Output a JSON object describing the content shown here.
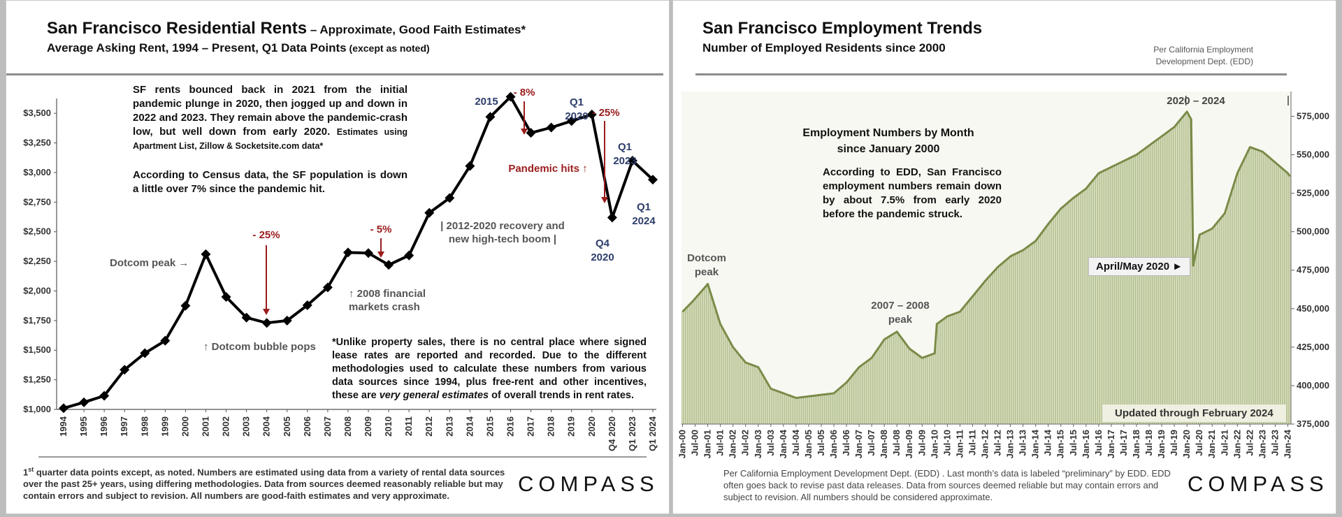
{
  "rent_panel": {
    "title_main": "San Francisco Residential Rents",
    "title_suffix": " – Approximate, Good Faith Estimates*",
    "subtitle_main": "Average Asking Rent, 1994 – Present, Q1 Data Points",
    "subtitle_suffix": " (except as noted)",
    "commentary_1": "SF rents bounced back in 2021 from the initial pandemic plunge in 2020, then jogged up and down in 2022 and 2023. They remain above the pandemic-crash low, but well down from early 2020.",
    "commentary_1_small": "Estimates using Apartment List, Zillow & Socketsite.com data*",
    "commentary_2": "According to Census data, the SF population is down a little over 7% since the pandemic hit.",
    "disclaimer_prefix": "*Unlike property sales, there is no central place where signed lease rates are reported and recorded. Due to the different methodologies used to calculate these numbers from various data sources since 1994, plus free-rent and other incentives, these are ",
    "disclaimer_em": "very general estimates",
    "disclaimer_suffix": " of overall trends in rent rates.",
    "footnote_sup": "st",
    "footnote_1": "1",
    "footnote_rest": " quarter data points except, as noted. Numbers are estimated using data from a variety of rental data sources over the past 25+ years, using differing methodologies. Data from sources deemed reasonably reliable but may contain errors and subject to revision. All numbers are good-faith estimates and very approximate.",
    "logo": "COMPASS",
    "annotations": {
      "dotcom_peak": "Dotcom peak →",
      "dotcom_pops": "↑ Dotcom bubble pops",
      "minus25_a": "- 25%",
      "minus5": "- 5%",
      "fin_crash_1": "↑ 2008 financial",
      "fin_crash_2": "markets crash",
      "recovery_1": "| 2012-2020 recovery and",
      "recovery_2": "new high-tech boom |",
      "y2015": "2015",
      "minus8": "- 8%",
      "q1_2020_a": "Q1",
      "q1_2020_b": "2020",
      "minus25_b": "- 25%",
      "pandemic": "Pandemic hits ↑",
      "q1_2023_a": "Q1",
      "q1_2023_b": "2023",
      "q1_2024_a": "Q1",
      "q1_2024_b": "2024",
      "q4_2020_a": "Q4",
      "q4_2020_b": "2020"
    }
  },
  "emp_panel": {
    "title": "San Francisco Employment Trends",
    "subtitle": "Number of Employed Residents since 2000",
    "source_1": "Per California Employment",
    "source_2": "Development Dept. (EDD)",
    "range_label": "2020 – 2024",
    "inset_title_1": "Employment Numbers by Month",
    "inset_title_2": "since January 2000",
    "inset_text": "According to EDD, San Francisco employment numbers remain down by about 7.5% from early 2020 before the pandemic struck.",
    "dotcom_1": "Dotcom",
    "dotcom_2": "peak",
    "peak0708_1": "2007 – 2008",
    "peak0708_2": "peak",
    "aprilmay": "April/May 2020 ►",
    "updated": "Updated through February 2024",
    "footnote": "Per California Employment Development Dept. (EDD) . Last month’s data is labeled “preliminary” by EDD. EDD often goes back to revise past data releases. Data from sources deemed reliable but may contain errors and subject to revision. All numbers should be considered approximate.",
    "logo": "COMPASS"
  },
  "chart_data": [
    {
      "type": "line",
      "title": "San Francisco Residential Rents – Approximate, Good Faith Estimates*",
      "subtitle": "Average Asking Rent, 1994 – Present, Q1 Data Points (except as noted)",
      "xlabel": "",
      "ylabel": "",
      "categories": [
        "1994",
        "1995",
        "1996",
        "1997",
        "1998",
        "1999",
        "2000",
        "2001",
        "2002",
        "2003",
        "2004",
        "2005",
        "2006",
        "2007",
        "2008",
        "2009",
        "2010",
        "2011",
        "2012",
        "2013",
        "2014",
        "2015",
        "2016",
        "2017",
        "2018",
        "2019",
        "2020",
        "Q4 2020",
        "Q1 2023",
        "Q1 2024"
      ],
      "series": [
        {
          "values": [
            1010,
            1060,
            1115,
            1335,
            1475,
            1580,
            1875,
            2310,
            1950,
            1775,
            1730,
            1750,
            1880,
            2030,
            2325,
            2320,
            2220,
            2300,
            2660,
            2785,
            3055,
            3470,
            3640,
            3335,
            3380,
            3435,
            3490,
            2620,
            3100,
            2940
          ]
        }
      ],
      "ylim": [
        1000,
        3625
      ],
      "yticks": [
        "$1,000",
        "$1,250",
        "$1,500",
        "$1,750",
        "$2,000",
        "$2,250",
        "$2,500",
        "$2,750",
        "$3,000",
        "$3,250",
        "$3,500"
      ],
      "color": "#000000",
      "marker": "diamond",
      "grid": false
    },
    {
      "type": "bar",
      "title": "San Francisco Employment Trends",
      "subtitle": "Number of Employed Residents since 2000",
      "xlabel": "",
      "ylabel": "",
      "ylim": [
        375000,
        582000
      ],
      "yticks": [
        "375,000",
        "400,000",
        "425,000",
        "450,000",
        "475,000",
        "500,000",
        "525,000",
        "550,000",
        "575,000"
      ],
      "x_tick_labels": [
        "Jan-00",
        "Jul-00",
        "Jan-01",
        "Jul-01",
        "Jan-02",
        "Jul-02",
        "Jan-03",
        "Jul-03",
        "Jan-04",
        "Jul-04",
        "Jan-05",
        "Jul-05",
        "Jan-06",
        "Jul-06",
        "Jan-07",
        "Jul-07",
        "Jan-08",
        "Jul-08",
        "Jan-09",
        "Jul-09",
        "Jan-10",
        "Jul-10",
        "Jan-11",
        "Jul-11",
        "Jan-12",
        "Jul-12",
        "Jan-13",
        "Jul-13",
        "Jan-14",
        "Jul-14",
        "Jan-15",
        "Jul-15",
        "Jan-16",
        "Jul-16",
        "Jan-17",
        "Jul-17",
        "Jan-18",
        "Jul-18",
        "Jan-19",
        "Jul-19",
        "Jan-20",
        "Jul-20",
        "Jan-21",
        "Jul-21",
        "Jan-22",
        "Jul-22",
        "Jan-23",
        "Jul-23",
        "Jan-24"
      ],
      "monthly_anchor_points": [
        {
          "month": "Jan-00",
          "value": 448000
        },
        {
          "month": "Jun-00",
          "value": 455000
        },
        {
          "month": "Jan-01",
          "value": 466000
        },
        {
          "month": "Jul-01",
          "value": 440000
        },
        {
          "month": "Jan-02",
          "value": 425000
        },
        {
          "month": "Jul-02",
          "value": 415000
        },
        {
          "month": "Jan-03",
          "value": 412000
        },
        {
          "month": "Jul-03",
          "value": 398000
        },
        {
          "month": "Jan-04",
          "value": 395000
        },
        {
          "month": "Jul-04",
          "value": 392000
        },
        {
          "month": "Jan-05",
          "value": 393000
        },
        {
          "month": "Jul-05",
          "value": 394000
        },
        {
          "month": "Jan-06",
          "value": 395000
        },
        {
          "month": "Jul-06",
          "value": 402000
        },
        {
          "month": "Jan-07",
          "value": 412000
        },
        {
          "month": "Jul-07",
          "value": 418000
        },
        {
          "month": "Jan-08",
          "value": 430000
        },
        {
          "month": "Jul-08",
          "value": 435000
        },
        {
          "month": "Jan-09",
          "value": 424000
        },
        {
          "month": "Jul-09",
          "value": 418000
        },
        {
          "month": "Jan-10",
          "value": 421000
        },
        {
          "month": "Feb-10",
          "value": 440000
        },
        {
          "month": "Jul-10",
          "value": 445000
        },
        {
          "month": "Jan-11",
          "value": 448000
        },
        {
          "month": "Jul-11",
          "value": 458000
        },
        {
          "month": "Jan-12",
          "value": 468000
        },
        {
          "month": "Jul-12",
          "value": 477000
        },
        {
          "month": "Jan-13",
          "value": 484000
        },
        {
          "month": "Jul-13",
          "value": 488000
        },
        {
          "month": "Jan-14",
          "value": 494000
        },
        {
          "month": "Jul-14",
          "value": 505000
        },
        {
          "month": "Jan-15",
          "value": 515000
        },
        {
          "month": "Jul-15",
          "value": 522000
        },
        {
          "month": "Jan-16",
          "value": 528000
        },
        {
          "month": "Jul-16",
          "value": 538000
        },
        {
          "month": "Jan-17",
          "value": 542000
        },
        {
          "month": "Jul-17",
          "value": 546000
        },
        {
          "month": "Jan-18",
          "value": 550000
        },
        {
          "month": "Jul-18",
          "value": 556000
        },
        {
          "month": "Jan-19",
          "value": 562000
        },
        {
          "month": "Jul-19",
          "value": 568000
        },
        {
          "month": "Jan-20",
          "value": 578000
        },
        {
          "month": "Mar-20",
          "value": 573000
        },
        {
          "month": "Apr-20",
          "value": 478000
        },
        {
          "month": "Jul-20",
          "value": 498000
        },
        {
          "month": "Jan-21",
          "value": 502000
        },
        {
          "month": "Jul-21",
          "value": 512000
        },
        {
          "month": "Jan-22",
          "value": 538000
        },
        {
          "month": "Jul-22",
          "value": 555000
        },
        {
          "month": "Jan-23",
          "value": 552000
        },
        {
          "month": "Jul-23",
          "value": 545000
        },
        {
          "month": "Jan-24",
          "value": 538000
        },
        {
          "month": "Feb-24",
          "value": 536000
        }
      ],
      "color": "#7a8b48",
      "fill_color": "#dbe2c4",
      "grid": false
    }
  ]
}
